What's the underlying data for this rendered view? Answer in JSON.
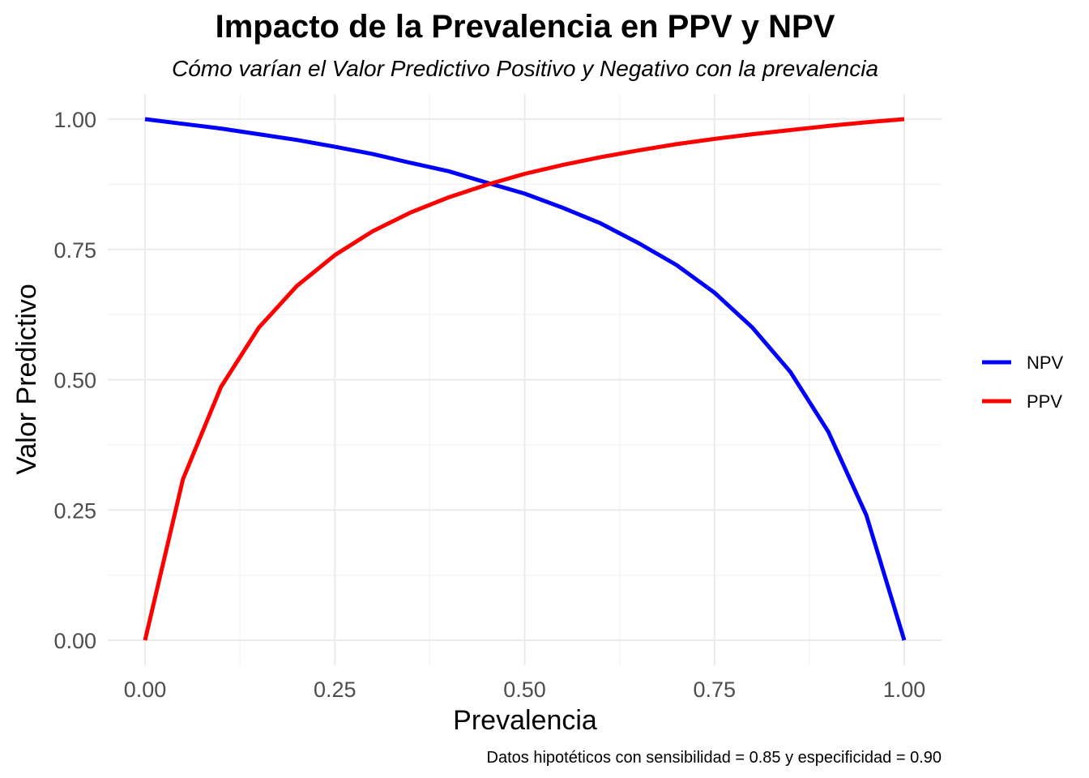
{
  "chart_data": {
    "type": "line",
    "title": "Impacto de la Prevalencia en PPV y NPV",
    "subtitle": "Cómo varían el Valor Predictivo Positivo y Negativo con la prevalencia",
    "xlabel": "Prevalencia",
    "ylabel": "Valor Predictivo",
    "caption": "Datos hipotéticos con sensibilidad = 0.85 y especificidad = 0.90",
    "xlim": [
      0,
      1
    ],
    "ylim": [
      0,
      1
    ],
    "x_ticks": [
      "0.00",
      "0.25",
      "0.50",
      "0.75",
      "1.00"
    ],
    "y_ticks": [
      "0.00",
      "0.25",
      "0.50",
      "0.75",
      "1.00"
    ],
    "grid": true,
    "legend_position": "right",
    "x": [
      0.0,
      0.05,
      0.1,
      0.15,
      0.2,
      0.25,
      0.3,
      0.35,
      0.4,
      0.45,
      0.5,
      0.55,
      0.6,
      0.65,
      0.7,
      0.75,
      0.8,
      0.85,
      0.9,
      0.95,
      1.0
    ],
    "series": [
      {
        "name": "NPV",
        "color": "#0000ff",
        "values": [
          1.0,
          0.991,
          0.982,
          0.971,
          0.96,
          0.947,
          0.933,
          0.916,
          0.9,
          0.878,
          0.857,
          0.83,
          0.8,
          0.762,
          0.72,
          0.667,
          0.6,
          0.515,
          0.4,
          0.24,
          0.0
        ]
      },
      {
        "name": "PPV",
        "color": "#ff0000",
        "values": [
          0.0,
          0.309,
          0.486,
          0.6,
          0.68,
          0.739,
          0.785,
          0.821,
          0.85,
          0.874,
          0.895,
          0.912,
          0.927,
          0.94,
          0.952,
          0.962,
          0.971,
          0.979,
          0.987,
          0.994,
          1.0
        ]
      }
    ]
  }
}
